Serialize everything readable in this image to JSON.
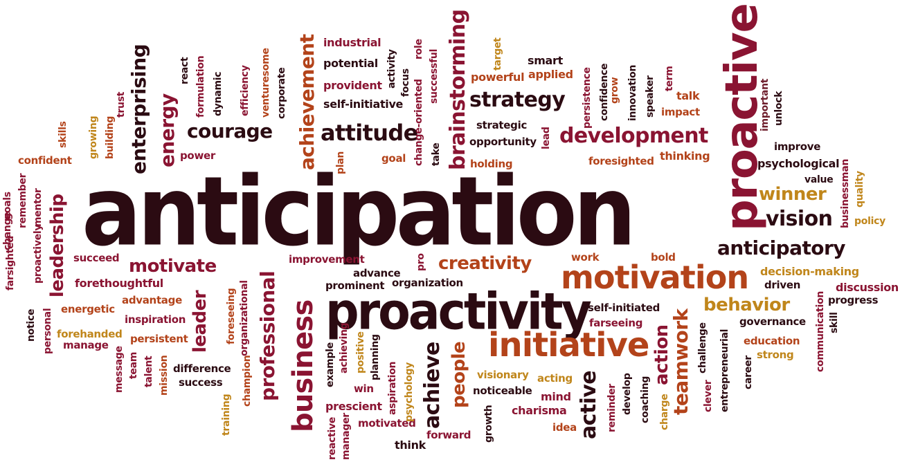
{
  "wordcloud": {
    "words": [
      "anticipation",
      "proactive",
      "proactivity",
      "initiative",
      "motivation",
      "business",
      "creativity",
      "development",
      "attitude",
      "courage",
      "strategy",
      "achievement",
      "brainstorming",
      "enterprising",
      "energy",
      "leadership",
      "professional",
      "motivate",
      "leader",
      "teamwork",
      "behavior",
      "vision",
      "winner",
      "anticipatory",
      "action",
      "active",
      "achieve",
      "people",
      "improve",
      "psychological",
      "value",
      "policy",
      "quality",
      "businessman",
      "important",
      "unlock",
      "talk",
      "impact",
      "term",
      "speaker",
      "innovation",
      "confidence",
      "grow",
      "persistence",
      "applied",
      "powerful",
      "smart",
      "target",
      "industrial",
      "potential",
      "provident",
      "self-initiative",
      "activity",
      "focus",
      "role",
      "change-oriented",
      "successful",
      "take",
      "plan",
      "goal",
      "strategic",
      "opportunity",
      "lead",
      "holding",
      "foresighted",
      "thinking",
      "react",
      "formulation",
      "dynamic",
      "efficiency",
      "venturesome",
      "corporate",
      "trust",
      "building",
      "growing",
      "skills",
      "confident",
      "power",
      "change",
      "goals",
      "remember",
      "mentor",
      "farsighted",
      "proactively",
      "notice",
      "personal",
      "succeed",
      "forethoughtful",
      "energetic",
      "advantage",
      "inspiration",
      "forehanded",
      "manage",
      "persistent",
      "foreseeing",
      "organizational",
      "champion",
      "difference",
      "success",
      "message",
      "team",
      "talent",
      "mission",
      "training",
      "improvement",
      "advance",
      "prominent",
      "organization",
      "pro",
      "work",
      "bold",
      "decision-making",
      "driven",
      "discussion",
      "progress",
      "governance",
      "skill",
      "communication",
      "education",
      "strong",
      "career",
      "entrepreneurial",
      "clever",
      "challenge",
      "charge",
      "coaching",
      "develop",
      "reminder",
      "self-initiated",
      "farseeing",
      "visionary",
      "noticeable",
      "acting",
      "mind",
      "charisma",
      "idea",
      "forward",
      "growth",
      "motivated",
      "think",
      "prescient",
      "win",
      "aspiration",
      "psychology",
      "positive",
      "planning",
      "achieving",
      "example",
      "reactive",
      "manager"
    ]
  }
}
